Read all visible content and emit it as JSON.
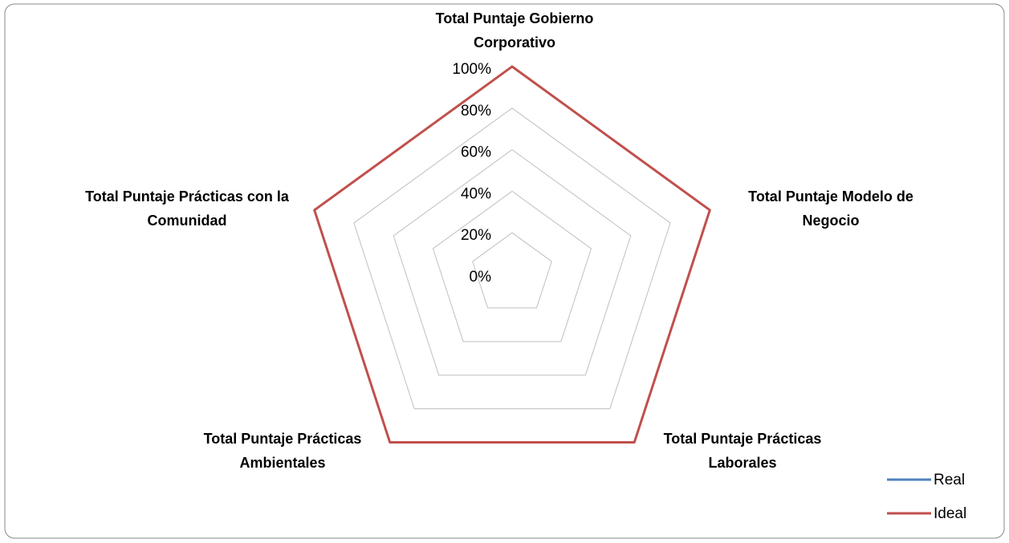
{
  "chart_data": {
    "type": "radar",
    "categories": [
      "Total Puntaje Gobierno Corporativo",
      "Total Puntaje Modelo de Negocio",
      "Total Puntaje Prácticas Laborales",
      "Total Puntaje Prácticas Ambientales",
      "Total Puntaje Prácticas con la Comunidad"
    ],
    "series": [
      {
        "name": "Real",
        "color": "#4f81bd",
        "values": [
          0,
          0,
          0,
          0,
          0
        ]
      },
      {
        "name": "Ideal",
        "color": "#c0504d",
        "values": [
          100,
          100,
          100,
          100,
          100
        ]
      }
    ],
    "ylim": [
      0,
      100
    ],
    "yticks": [
      {
        "value": 0,
        "label": "0%"
      },
      {
        "value": 20,
        "label": "20%"
      },
      {
        "value": 40,
        "label": "40%"
      },
      {
        "value": 60,
        "label": "60%"
      },
      {
        "value": 80,
        "label": "80%"
      },
      {
        "value": 100,
        "label": "100%"
      }
    ],
    "grid": true,
    "legend": "bottom-right"
  }
}
